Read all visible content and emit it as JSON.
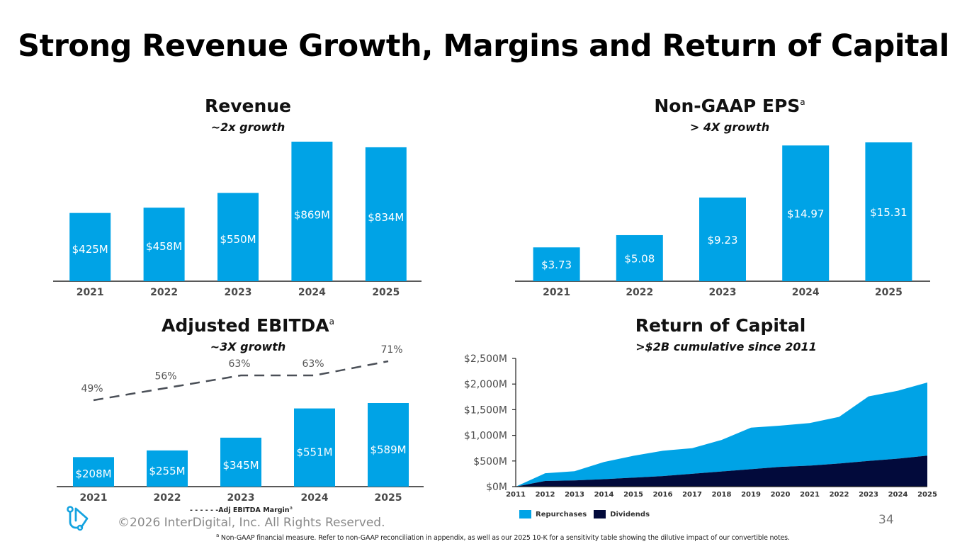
{
  "page": {
    "title": "Strong Revenue Growth, Margins and Return of Capital",
    "copyright": "©2026 InterDigital, Inc. All Rights Reserved.",
    "page_number": "34",
    "footnote_marker": "a",
    "footnote": "Non-GAAP financial measure. Refer to non-GAAP reconciliation in appendix, as well as our 2025 10-K for a sensitivity table showing the dilutive impact of our convertible notes.",
    "logo_icon": "interdigital-logo-icon"
  },
  "colors": {
    "bar": "#00a3e6",
    "repurchases": "#00a3e6",
    "dividends": "#020a3b",
    "axis": "#222222",
    "tick_label": "#4a4a4a",
    "margin_line": "#4a4f57"
  },
  "chart_data": [
    {
      "id": "revenue",
      "type": "bar",
      "title": "Revenue",
      "subtitle": "~2x growth",
      "categories": [
        "2021",
        "2022",
        "2023",
        "2024",
        "2025"
      ],
      "values": [
        425,
        458,
        550,
        869,
        834
      ],
      "data_labels": [
        "$425M",
        "$458M",
        "$550M",
        "$869M",
        "$834M"
      ],
      "unit": "$M",
      "xlabel": "",
      "ylabel": "",
      "grid": false
    },
    {
      "id": "eps",
      "type": "bar",
      "title": "Non-GAAP EPS",
      "title_superscript": "a",
      "subtitle": "> 4X growth",
      "categories": [
        "2021",
        "2022",
        "2023",
        "2024",
        "2025"
      ],
      "values": [
        3.73,
        5.08,
        9.23,
        14.97,
        15.31
      ],
      "data_labels": [
        "$3.73",
        "$5.08",
        "$9.23",
        "$14.97",
        "$15.31"
      ],
      "unit": "$",
      "xlabel": "",
      "ylabel": "",
      "grid": false
    },
    {
      "id": "ebitda",
      "type": "bar",
      "title": "Adjusted EBITDA",
      "title_superscript": "a",
      "subtitle": "~3X growth",
      "categories": [
        "2021",
        "2022",
        "2023",
        "2024",
        "2025"
      ],
      "series": [
        {
          "name": "Adjusted EBITDA",
          "type": "bar",
          "values": [
            208,
            255,
            345,
            551,
            589
          ],
          "data_labels": [
            "$208M",
            "$255M",
            "$345M",
            "$551M",
            "$589M"
          ]
        },
        {
          "name": "Adj EBITDA Margin",
          "type": "line",
          "style": "dashed",
          "values": [
            49,
            56,
            63,
            63,
            71
          ],
          "data_labels": [
            "49%",
            "56%",
            "63%",
            "63%",
            "71%"
          ]
        }
      ],
      "legend": {
        "label": "- - - - - -Adj EBITDA Margin",
        "superscript": "a",
        "position": "bottom"
      },
      "grid": false
    },
    {
      "id": "return_of_capital",
      "type": "area",
      "stacked": true,
      "title": "Return of Capital",
      "subtitle": ">$2B cumulative since 2011",
      "x": [
        "2011",
        "2012",
        "2013",
        "2014",
        "2015",
        "2016",
        "2017",
        "2018",
        "2019",
        "2020",
        "2021",
        "2022",
        "2023",
        "2024",
        "2025"
      ],
      "series": [
        {
          "name": "Dividends",
          "values": [
            0,
            110,
            120,
            145,
            175,
            205,
            250,
            295,
            340,
            385,
            410,
            450,
            500,
            545,
            605
          ]
        },
        {
          "name": "Repurchases",
          "values": [
            0,
            150,
            180,
            335,
            425,
            495,
            500,
            615,
            810,
            805,
            830,
            910,
            1260,
            1325,
            1425
          ]
        }
      ],
      "cumulative_total": [
        0,
        260,
        300,
        480,
        600,
        700,
        750,
        910,
        1150,
        1190,
        1240,
        1360,
        1760,
        1870,
        2030
      ],
      "ylim": [
        0,
        2500
      ],
      "yticks": [
        0,
        500,
        1000,
        1500,
        2000,
        2500
      ],
      "ytick_labels": [
        "$0M",
        "$500M",
        "$1,000M",
        "$1,500M",
        "$2,000M",
        "$2,500M"
      ],
      "legend": {
        "items": [
          "Repurchases",
          "Dividends"
        ],
        "position": "bottom-left"
      },
      "grid": false
    }
  ]
}
